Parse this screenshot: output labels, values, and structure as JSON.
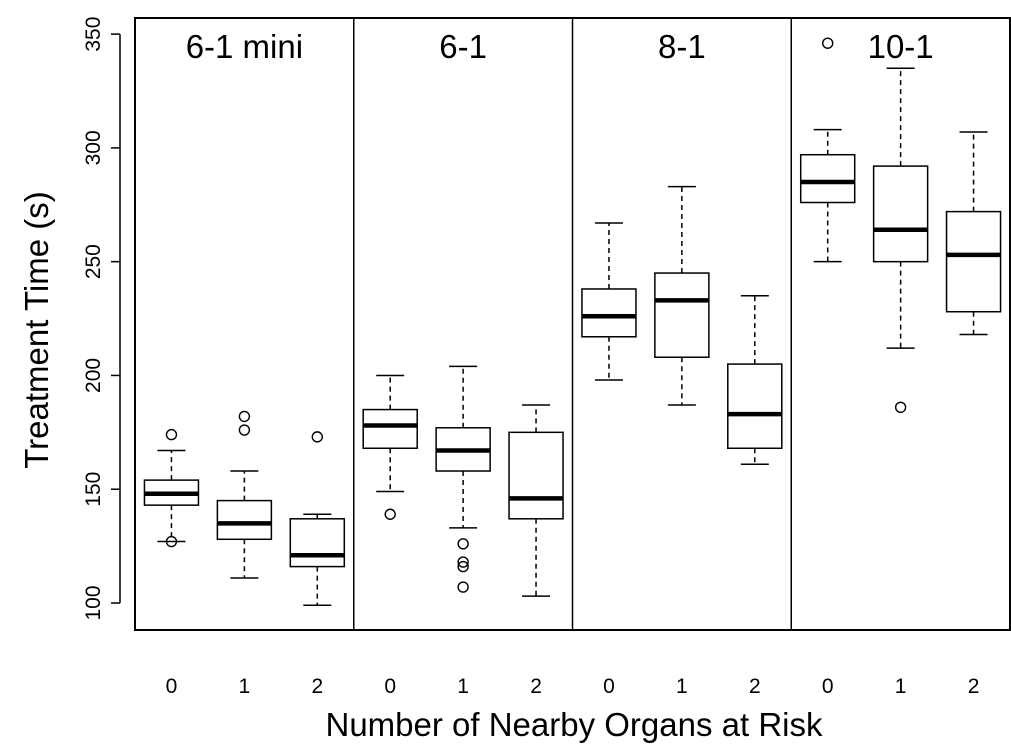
{
  "chart_data": {
    "type": "boxplot",
    "ylabel": "Treatment Time (s)",
    "xlabel": "Number of Nearby Organs at Risk",
    "ylim": [
      90,
      352
    ],
    "yticks": [
      100,
      150,
      200,
      250,
      300,
      350
    ],
    "grid": false,
    "legend": "none",
    "panels": [
      {
        "title": "6-1 mini",
        "groups": [
          {
            "category": "0",
            "whisker_low": 127,
            "q1": 143,
            "median": 148,
            "q3": 154,
            "whisker_high": 167,
            "outliers": [
              127,
              174
            ]
          },
          {
            "category": "1",
            "whisker_low": 111,
            "q1": 128,
            "median": 135,
            "q3": 145,
            "whisker_high": 158,
            "outliers": [
              176,
              182
            ]
          },
          {
            "category": "2",
            "whisker_low": 99,
            "q1": 116,
            "median": 121,
            "q3": 137,
            "whisker_high": 139,
            "outliers": [
              173
            ]
          }
        ]
      },
      {
        "title": "6-1",
        "groups": [
          {
            "category": "0",
            "whisker_low": 149,
            "q1": 168,
            "median": 178,
            "q3": 185,
            "whisker_high": 200,
            "outliers": [
              139
            ]
          },
          {
            "category": "1",
            "whisker_low": 133,
            "q1": 158,
            "median": 167,
            "q3": 177,
            "whisker_high": 204,
            "outliers": [
              107,
              116,
              118,
              126
            ]
          },
          {
            "category": "2",
            "whisker_low": 103,
            "q1": 137,
            "median": 146,
            "q3": 175,
            "whisker_high": 187,
            "outliers": []
          }
        ]
      },
      {
        "title": "8-1",
        "groups": [
          {
            "category": "0",
            "whisker_low": 198,
            "q1": 217,
            "median": 226,
            "q3": 238,
            "whisker_high": 267,
            "outliers": []
          },
          {
            "category": "1",
            "whisker_low": 187,
            "q1": 208,
            "median": 233,
            "q3": 245,
            "whisker_high": 283,
            "outliers": []
          },
          {
            "category": "2",
            "whisker_low": 161,
            "q1": 168,
            "median": 183,
            "q3": 205,
            "whisker_high": 235,
            "outliers": []
          }
        ]
      },
      {
        "title": "10-1",
        "groups": [
          {
            "category": "0",
            "whisker_low": 250,
            "q1": 276,
            "median": 285,
            "q3": 297,
            "whisker_high": 308,
            "outliers": [
              346
            ]
          },
          {
            "category": "1",
            "whisker_low": 212,
            "q1": 250,
            "median": 264,
            "q3": 292,
            "whisker_high": 335,
            "outliers": [
              186
            ]
          },
          {
            "category": "2",
            "whisker_low": 218,
            "q1": 228,
            "median": 253,
            "q3": 272,
            "whisker_high": 307,
            "outliers": []
          }
        ]
      }
    ]
  }
}
